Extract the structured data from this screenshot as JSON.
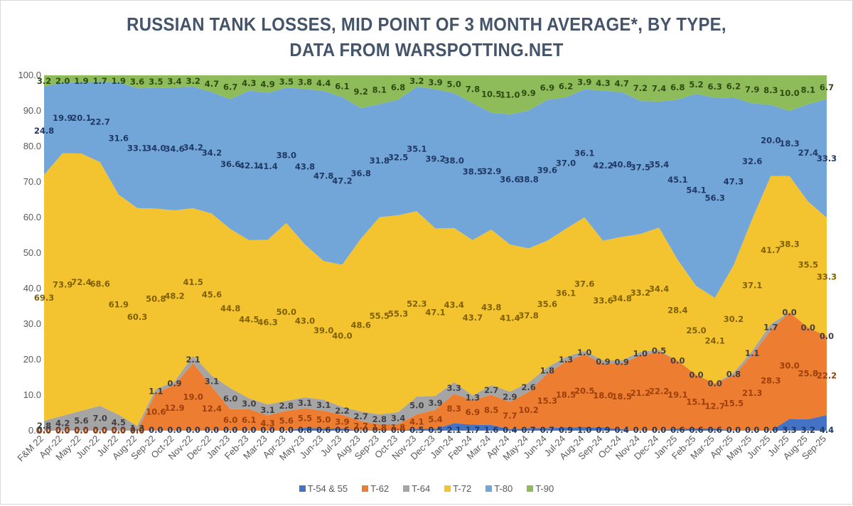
{
  "chart_data": {
    "type": "area",
    "stacked": true,
    "title": "RUSSIAN TANK LOSSES, MID POINT OF 3 MONTH AVERAGE*, BY TYPE,",
    "subtitle": "DATA FROM WARSPOTTING.NET",
    "xlabel": "",
    "ylabel": "",
    "ylim": [
      0,
      100
    ],
    "yticks": [
      "0.0",
      "10.0",
      "20.0",
      "30.0",
      "40.0",
      "50.0",
      "60.0",
      "70.0",
      "80.0",
      "90.0",
      "100.0"
    ],
    "grid": false,
    "legend_position": "bottom",
    "categories": [
      "F&M 22",
      "Apr-22",
      "May-22",
      "Jun-22",
      "Jul-22",
      "Aug-22",
      "Sep-22",
      "Oct-22",
      "Nov-22",
      "Dec-22",
      "Jan-23",
      "Feb-23",
      "Mar-23",
      "Apr-23",
      "May-23",
      "Jun-23",
      "Jul-23",
      "Aug-23",
      "Sep-23",
      "Oct-23",
      "Nov-23",
      "Dec-23",
      "Jan-24",
      "Feb-24",
      "Mar-24",
      "Apr-24",
      "May-24",
      "Jun-24",
      "Jul-24",
      "Aug-24",
      "Sep-24",
      "Oct-24",
      "Nov-24",
      "Dec-24",
      "Jan-25",
      "Feb-25",
      "Mar-25",
      "Apr-25",
      "May-25",
      "Jun-25",
      "Jul-25",
      "Aug-25",
      "Sep-25"
    ],
    "series": [
      {
        "name": "T-54 & 55",
        "color": "#4472c4",
        "label_color": "#1f3864",
        "values": [
          0.0,
          0.0,
          0.0,
          0.0,
          0.0,
          0.0,
          0.0,
          0.0,
          0.0,
          0.0,
          0.0,
          0.0,
          0.0,
          0.0,
          0.8,
          0.6,
          0.6,
          0.0,
          0.0,
          0.0,
          0.5,
          0.5,
          2.1,
          1.7,
          1.6,
          0.4,
          0.7,
          0.7,
          0.9,
          1.0,
          0.9,
          0.4,
          0.0,
          0.0,
          0.6,
          0.6,
          0.6,
          0.0,
          0.0,
          0.0,
          3.3,
          3.2,
          4.4
        ]
      },
      {
        "name": "T-62",
        "color": "#ed7d31",
        "label_color": "#9c3f0a",
        "values": [
          0.0,
          0.0,
          0.0,
          0.0,
          0.0,
          0.0,
          10.6,
          12.9,
          19.0,
          12.4,
          6.0,
          6.1,
          4.3,
          5.6,
          5.5,
          5.0,
          3.9,
          2.7,
          1.8,
          1.8,
          4.1,
          5.4,
          8.3,
          6.9,
          8.5,
          7.7,
          10.2,
          15.3,
          18.5,
          20.5,
          18.0,
          18.5,
          21.2,
          22.2,
          19.1,
          15.1,
          12.7,
          15.5,
          21.3,
          28.3,
          30.0,
          25.8,
          22.2
        ]
      },
      {
        "name": "T-64",
        "color": "#a5a5a5",
        "label_color": "#404040",
        "values": [
          2.8,
          4.2,
          5.6,
          7.0,
          4.5,
          1.3,
          1.1,
          0.9,
          2.1,
          3.1,
          6.0,
          3.0,
          3.1,
          2.8,
          3.1,
          3.1,
          2.2,
          2.7,
          2.8,
          3.4,
          5.0,
          3.9,
          3.3,
          1.3,
          2.7,
          2.9,
          2.6,
          1.8,
          1.3,
          1.0,
          0.9,
          0.9,
          1.0,
          0.5,
          0.0,
          0.0,
          0.0,
          0.8,
          1.1,
          1.7,
          0.0,
          0.0,
          0.0
        ]
      },
      {
        "name": "T-72",
        "color": "#f4c430",
        "label_color": "#7f6000",
        "values": [
          69.3,
          73.9,
          72.4,
          68.6,
          61.9,
          60.3,
          50.8,
          48.2,
          41.5,
          45.6,
          44.8,
          44.5,
          46.3,
          50.0,
          43.0,
          39.0,
          40.0,
          48.6,
          55.5,
          55.3,
          52.3,
          47.1,
          43.4,
          43.7,
          43.8,
          41.4,
          37.8,
          35.6,
          36.1,
          37.6,
          33.6,
          34.8,
          33.2,
          34.4,
          28.4,
          25.0,
          24.1,
          30.2,
          37.1,
          41.7,
          38.3,
          35.5,
          33.3
        ]
      },
      {
        "name": "T-80",
        "color": "#72a5d8",
        "label_color": "#1f3864",
        "values": [
          24.8,
          19.9,
          20.1,
          22.7,
          31.6,
          33.1,
          34.0,
          34.6,
          34.2,
          34.2,
          36.6,
          42.1,
          41.4,
          38.0,
          43.8,
          47.8,
          47.2,
          36.8,
          31.8,
          32.5,
          35.1,
          39.2,
          38.0,
          38.5,
          32.9,
          36.6,
          38.8,
          39.6,
          37.0,
          36.1,
          42.2,
          40.8,
          37.5,
          35.4,
          45.1,
          54.1,
          56.3,
          47.3,
          32.6,
          20.0,
          18.3,
          27.4,
          33.3
        ]
      },
      {
        "name": "T-90",
        "color": "#8fbc5a",
        "label_color": "#2e4a12",
        "values": [
          3.2,
          2.0,
          1.9,
          1.7,
          1.9,
          3.6,
          3.5,
          3.4,
          3.2,
          4.7,
          6.7,
          4.3,
          4.9,
          3.5,
          3.8,
          4.4,
          6.1,
          9.2,
          8.1,
          6.8,
          3.2,
          3.9,
          5.0,
          7.8,
          10.5,
          11.0,
          9.9,
          6.9,
          6.2,
          3.9,
          4.3,
          4.7,
          7.2,
          7.4,
          6.8,
          5.2,
          6.3,
          6.2,
          7.9,
          8.3,
          10.0,
          8.1,
          6.7
        ]
      }
    ]
  }
}
